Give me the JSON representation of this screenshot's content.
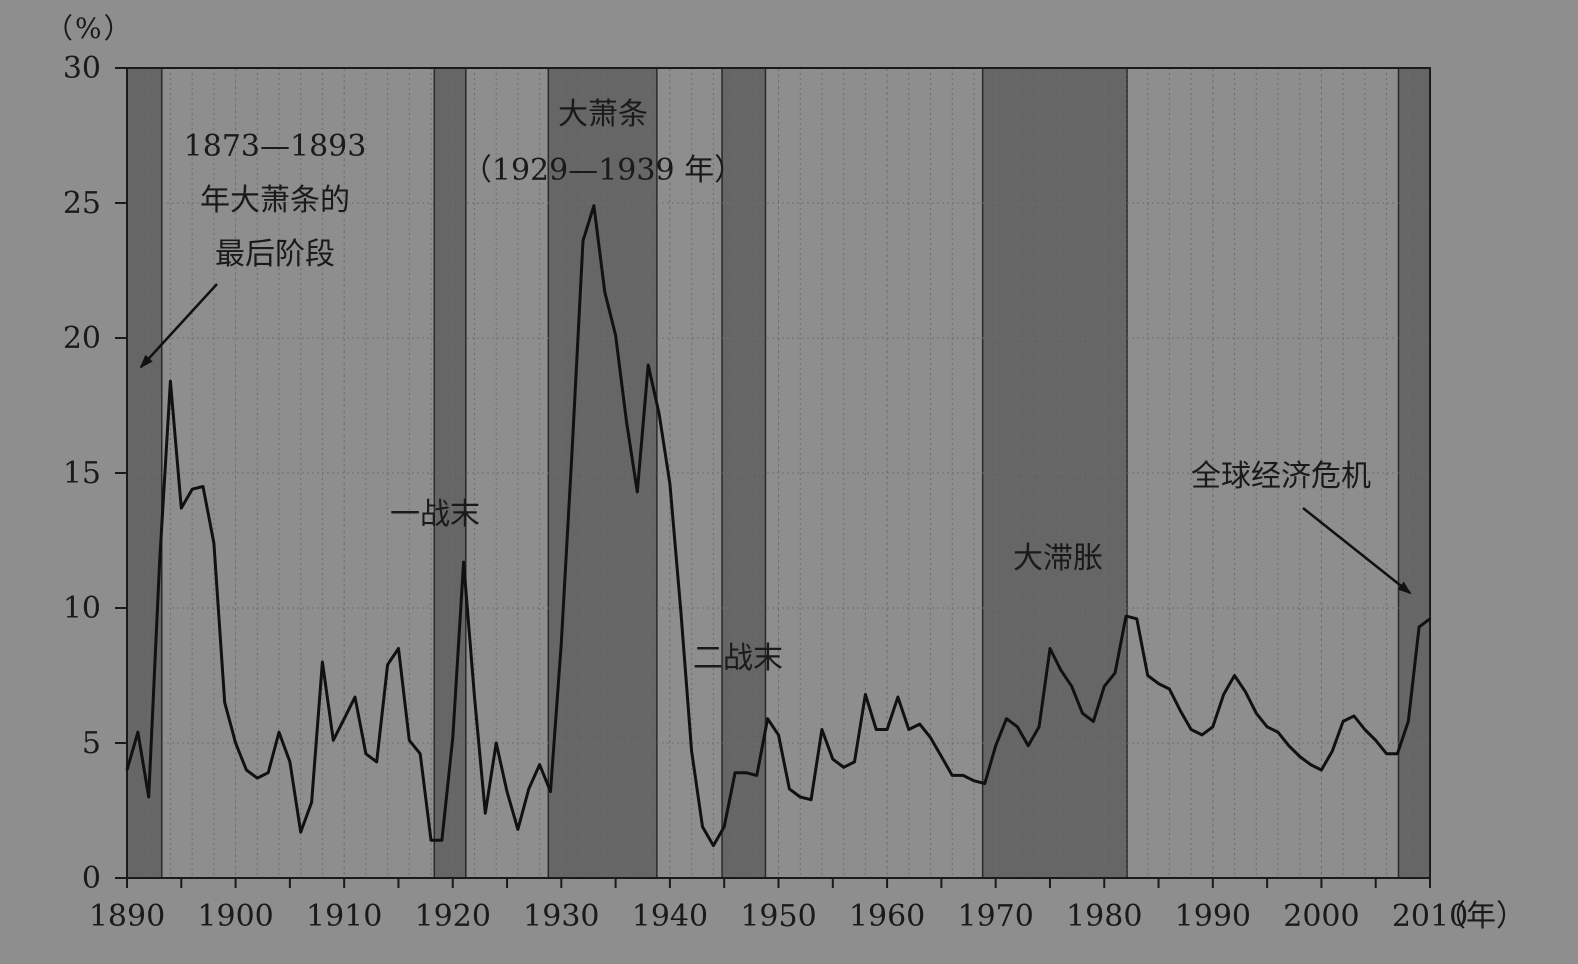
{
  "chart_data": {
    "type": "line",
    "ylabel": "（%）",
    "xlabel": "（年）",
    "xlim": [
      1890,
      2010
    ],
    "ylim": [
      0,
      30
    ],
    "x_ticks": [
      1890,
      1900,
      1910,
      1920,
      1930,
      1940,
      1950,
      1960,
      1970,
      1980,
      1990,
      2000,
      2010
    ],
    "y_ticks": [
      0,
      5,
      10,
      15,
      20,
      25,
      30
    ],
    "grid": true,
    "colors": {
      "background": "#8e8e8e",
      "shade": "#666666",
      "line": "#111111",
      "grid": "#6e6e6e"
    },
    "shaded_periods": [
      {
        "start": 1890,
        "end": 1893.2
      },
      {
        "start": 1918.3,
        "end": 1921.2
      },
      {
        "start": 1928.8,
        "end": 1938.8
      },
      {
        "start": 1944.8,
        "end": 1948.8
      },
      {
        "start": 1968.8,
        "end": 1982.1
      },
      {
        "start": 2007.1,
        "end": 2010
      }
    ],
    "annotations": [
      {
        "lines": [
          "1873—1893",
          "年大萧条的",
          "最后阶段"
        ],
        "arrow": true
      },
      {
        "lines": [
          "一战末"
        ]
      },
      {
        "lines": [
          "大萧条",
          "（1929—1939 年）"
        ]
      },
      {
        "lines": [
          "二战末"
        ]
      },
      {
        "lines": [
          "大滞胀"
        ]
      },
      {
        "lines": [
          "全球经济危机"
        ],
        "arrow": true
      }
    ],
    "series": [
      {
        "x": [
          1890,
          1891,
          1892,
          1893,
          1894,
          1895,
          1896,
          1897,
          1898,
          1899,
          1900,
          1901,
          1902,
          1903,
          1904,
          1905,
          1906,
          1907,
          1908,
          1909,
          1910,
          1911,
          1912,
          1913,
          1914,
          1915,
          1916,
          1917,
          1918,
          1919,
          1920,
          1921,
          1922,
          1923,
          1924,
          1925,
          1926,
          1927,
          1928,
          1929,
          1930,
          1931,
          1932,
          1933,
          1934,
          1935,
          1936,
          1937,
          1938,
          1939,
          1940,
          1941,
          1942,
          1943,
          1944,
          1945,
          1946,
          1947,
          1948,
          1949,
          1950,
          1951,
          1952,
          1953,
          1954,
          1955,
          1956,
          1957,
          1958,
          1959,
          1960,
          1961,
          1962,
          1963,
          1964,
          1965,
          1966,
          1967,
          1968,
          1969,
          1970,
          1971,
          1972,
          1973,
          1974,
          1975,
          1976,
          1977,
          1978,
          1979,
          1980,
          1981,
          1982,
          1983,
          1984,
          1985,
          1986,
          1987,
          1988,
          1989,
          1990,
          1991,
          1992,
          1993,
          1994,
          1995,
          1996,
          1997,
          1998,
          1999,
          2000,
          2001,
          2002,
          2003,
          2004,
          2005,
          2006,
          2007,
          2008,
          2009,
          2010
        ],
        "values": [
          4.0,
          5.4,
          3.0,
          11.7,
          18.4,
          13.7,
          14.4,
          14.5,
          12.4,
          6.5,
          5.0,
          4.0,
          3.7,
          3.9,
          5.4,
          4.3,
          1.7,
          2.8,
          8.0,
          5.1,
          5.9,
          6.7,
          4.6,
          4.3,
          7.9,
          8.5,
          5.1,
          4.6,
          1.4,
          1.4,
          5.2,
          11.7,
          6.7,
          2.4,
          5.0,
          3.2,
          1.8,
          3.3,
          4.2,
          3.2,
          8.7,
          15.9,
          23.6,
          24.9,
          21.7,
          20.1,
          16.9,
          14.3,
          19.0,
          17.2,
          14.6,
          9.9,
          4.7,
          1.9,
          1.2,
          1.9,
          3.9,
          3.9,
          3.8,
          5.9,
          5.3,
          3.3,
          3.0,
          2.9,
          5.5,
          4.4,
          4.1,
          4.3,
          6.8,
          5.5,
          5.5,
          6.7,
          5.5,
          5.7,
          5.2,
          4.5,
          3.8,
          3.8,
          3.6,
          3.5,
          4.9,
          5.9,
          5.6,
          4.9,
          5.6,
          8.5,
          7.7,
          7.1,
          6.1,
          5.8,
          7.1,
          7.6,
          9.7,
          9.6,
          7.5,
          7.2,
          7.0,
          6.2,
          5.5,
          5.3,
          5.6,
          6.8,
          7.5,
          6.9,
          6.1,
          5.6,
          5.4,
          4.9,
          4.5,
          4.2,
          4.0,
          4.7,
          5.8,
          6.0,
          5.5,
          5.1,
          4.6,
          4.6,
          5.8,
          9.3,
          9.6
        ]
      }
    ]
  }
}
